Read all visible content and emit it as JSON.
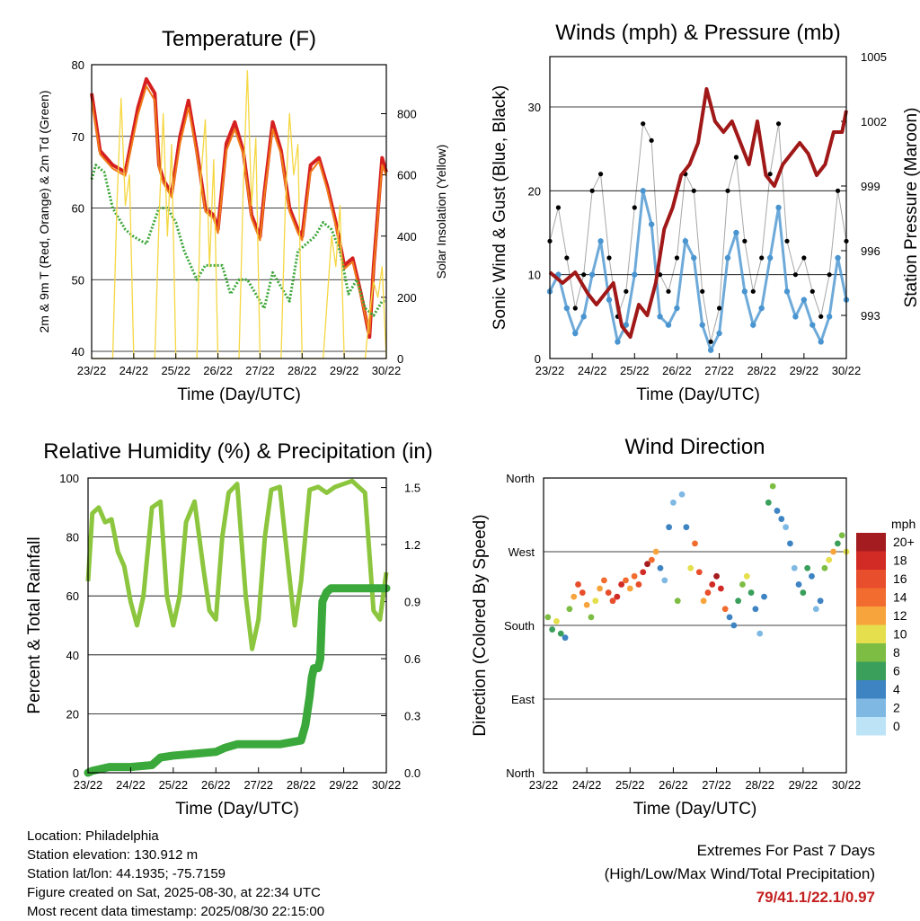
{
  "colors": {
    "temp2m": "#d62020",
    "temp9m": "#f07a18",
    "dewpoint": "#3da63a",
    "solar": "#f5d742",
    "wind": "#4a95d0",
    "gust": "#000000",
    "pressure": "#a01818",
    "rh": "#8cc63e",
    "precip": "#3aa83a",
    "extremes": "#c41e1e"
  },
  "time_ticks": [
    "23/22",
    "24/22",
    "25/22",
    "26/22",
    "27/22",
    "28/22",
    "29/22",
    "30/22"
  ],
  "chart_data": [
    {
      "type": "line",
      "title": "Temperature (F)",
      "xlabel": "Time (Day/UTC)",
      "ylabel": "2m & 9m T (Red, Orange) & 2m Td (Green)",
      "y2label": "Solar Insolation (Yellow)",
      "ylim": [
        39,
        80
      ],
      "y2lim": [
        0,
        960
      ],
      "yticks": [
        40,
        50,
        60,
        70,
        80
      ],
      "y2ticks": [
        0,
        200,
        400,
        600,
        800
      ],
      "series": [
        {
          "key": "temp2m",
          "x": [
            0,
            0.2,
            0.5,
            0.8,
            1.1,
            1.3,
            1.5,
            1.6,
            1.7,
            1.9,
            2.1,
            2.3,
            2.5,
            2.7,
            2.9,
            3.0,
            3.2,
            3.4,
            3.6,
            3.8,
            4.0,
            4.1,
            4.3,
            4.5,
            4.7,
            4.9,
            5.0,
            5.2,
            5.4,
            5.6,
            5.8,
            6.0,
            6.2,
            6.4,
            6.6,
            6.7,
            6.9,
            7.0
          ],
          "y": [
            76,
            68,
            66,
            65,
            74,
            78,
            76,
            66,
            64,
            62,
            70,
            75,
            68,
            60,
            59,
            57,
            69,
            72,
            68,
            59,
            56,
            62,
            72,
            68,
            60,
            57,
            56,
            66,
            67,
            63,
            58,
            52,
            53,
            48,
            42,
            52,
            67,
            65
          ]
        },
        {
          "key": "temp9m",
          "x": [
            0,
            0.2,
            0.5,
            0.8,
            1.1,
            1.3,
            1.5,
            1.6,
            1.7,
            1.9,
            2.1,
            2.3,
            2.5,
            2.7,
            2.9,
            3.0,
            3.2,
            3.4,
            3.6,
            3.8,
            4.0,
            4.1,
            4.3,
            4.5,
            4.7,
            4.9,
            5.0,
            5.2,
            5.4,
            5.6,
            5.8,
            6.0,
            6.2,
            6.4,
            6.6,
            6.7,
            6.9,
            7.0
          ],
          "y": [
            75,
            67.5,
            65.5,
            64.5,
            73,
            77,
            75,
            65.5,
            63.5,
            61.5,
            69,
            74,
            67.5,
            59.5,
            58.5,
            56.5,
            68,
            71,
            67.5,
            58.5,
            55.5,
            61.5,
            71,
            67.5,
            59.5,
            56.5,
            55.5,
            65,
            66.5,
            62.5,
            57.5,
            51.5,
            52.5,
            47.5,
            42.5,
            51.5,
            66,
            64.5
          ]
        },
        {
          "key": "dewpoint",
          "x": [
            0,
            0.1,
            0.3,
            0.5,
            0.8,
            1.0,
            1.3,
            1.6,
            1.8,
            2.0,
            2.2,
            2.5,
            2.7,
            2.9,
            3.1,
            3.3,
            3.5,
            3.7,
            3.9,
            4.1,
            4.3,
            4.5,
            4.7,
            4.9,
            5.1,
            5.3,
            5.5,
            5.7,
            5.9,
            6.1,
            6.3,
            6.5,
            6.7,
            6.9,
            7.0
          ],
          "y": [
            64,
            66,
            65,
            60,
            57,
            56,
            55,
            60,
            60,
            58,
            54,
            50,
            52,
            52,
            52,
            48,
            50,
            50,
            48,
            46,
            51,
            49,
            47,
            54,
            55,
            56,
            58,
            57,
            54,
            48,
            50,
            46,
            45,
            47,
            47
          ]
        },
        {
          "key": "solar",
          "x": [
            0,
            0.5,
            0.6,
            0.7,
            0.8,
            0.9,
            1.0,
            1.5,
            1.6,
            1.7,
            1.8,
            1.9,
            2.0,
            2.5,
            2.6,
            2.7,
            2.8,
            2.9,
            3.0,
            3.5,
            3.6,
            3.7,
            3.8,
            3.9,
            4.0,
            4.5,
            4.6,
            4.7,
            4.8,
            4.9,
            5.0,
            5.5,
            5.6,
            5.7,
            5.8,
            5.9,
            6.0,
            6.5,
            6.6,
            6.7,
            6.8,
            6.9,
            7.0
          ],
          "y": [
            0,
            0,
            500,
            850,
            500,
            600,
            0,
            0,
            450,
            800,
            400,
            700,
            0,
            0,
            600,
            780,
            300,
            650,
            0,
            0,
            550,
            940,
            500,
            720,
            0,
            0,
            500,
            800,
            600,
            700,
            0,
            0,
            200,
            400,
            300,
            500,
            0,
            0,
            150,
            250,
            200,
            300,
            0
          ]
        }
      ]
    },
    {
      "type": "scatter",
      "title": "Winds (mph) & Pressure (mb)",
      "xlabel": "Time (Day/UTC)",
      "ylabel": "Sonic Wind & Gust (Blue, Black)",
      "y2label": "Station Pressure (Maroon)",
      "ylim": [
        0,
        36
      ],
      "y2lim": [
        991,
        1005
      ],
      "yticks": [
        0,
        10,
        20,
        30
      ],
      "y2ticks": [
        993,
        996,
        999,
        1002,
        1005
      ],
      "series": [
        {
          "key": "gust",
          "x": [
            0,
            0.2,
            0.4,
            0.6,
            0.8,
            1.0,
            1.2,
            1.4,
            1.6,
            1.8,
            2.0,
            2.2,
            2.4,
            2.6,
            2.8,
            3.0,
            3.2,
            3.4,
            3.6,
            3.8,
            4.0,
            4.2,
            4.4,
            4.6,
            4.8,
            5.0,
            5.2,
            5.4,
            5.6,
            5.8,
            6.0,
            6.2,
            6.4,
            6.6,
            6.8,
            7.0
          ],
          "y": [
            14,
            18,
            12,
            6,
            10,
            20,
            22,
            12,
            5,
            8,
            18,
            28,
            26,
            10,
            8,
            12,
            22,
            20,
            8,
            2,
            6,
            20,
            24,
            14,
            8,
            12,
            22,
            28,
            14,
            10,
            12,
            8,
            5,
            10,
            20,
            14
          ]
        },
        {
          "key": "wind",
          "x": [
            0,
            0.2,
            0.4,
            0.6,
            0.8,
            1.0,
            1.2,
            1.4,
            1.6,
            1.8,
            2.0,
            2.2,
            2.4,
            2.6,
            2.8,
            3.0,
            3.2,
            3.4,
            3.6,
            3.8,
            4.0,
            4.2,
            4.4,
            4.6,
            4.8,
            5.0,
            5.2,
            5.4,
            5.6,
            5.8,
            6.0,
            6.2,
            6.4,
            6.6,
            6.8,
            7.0
          ],
          "y": [
            8,
            10,
            6,
            3,
            5,
            10,
            14,
            7,
            2,
            4,
            10,
            20,
            16,
            5,
            4,
            6,
            14,
            12,
            4,
            1,
            3,
            12,
            15,
            8,
            4,
            6,
            12,
            18,
            8,
            5,
            7,
            4,
            2,
            5,
            12,
            7
          ]
        },
        {
          "key": "pressure",
          "x": [
            0,
            0.3,
            0.6,
            0.9,
            1.1,
            1.3,
            1.5,
            1.7,
            1.9,
            2.1,
            2.3,
            2.5,
            2.7,
            2.9,
            3.1,
            3.3,
            3.5,
            3.7,
            3.9,
            4.1,
            4.3,
            4.5,
            4.7,
            4.9,
            5.1,
            5.3,
            5.5,
            5.7,
            5.9,
            6.1,
            6.3,
            6.5,
            6.7,
            6.9,
            7.0
          ],
          "y": [
            995,
            994.5,
            995,
            994,
            993.5,
            994,
            994.5,
            992.5,
            992,
            993.5,
            993,
            994.5,
            997,
            998,
            999.5,
            1000,
            1001,
            1003.5,
            1002,
            1001.5,
            1002,
            1001,
            1000,
            1002,
            999.5,
            999,
            1000,
            1000.5,
            1001,
            1000.5,
            999.5,
            1000,
            1001.5,
            1001.5,
            1002.5
          ]
        }
      ]
    },
    {
      "type": "line",
      "title": "Relative Humidity (%) & Precipitation (in)",
      "xlabel": "Time (Day/UTC)",
      "ylabel": "Percent & Total Rainfall",
      "ylim": [
        0,
        100
      ],
      "y2lim": [
        0,
        1.55
      ],
      "yticks": [
        0,
        20,
        40,
        60,
        80,
        100
      ],
      "y2ticks": [
        "0.0",
        "0.3",
        "0.6",
        "0.9",
        "1.2",
        "1.5"
      ],
      "series": [
        {
          "key": "rh",
          "x": [
            0,
            0.1,
            0.25,
            0.4,
            0.55,
            0.7,
            0.85,
            1.0,
            1.15,
            1.3,
            1.5,
            1.7,
            1.85,
            2.0,
            2.15,
            2.3,
            2.5,
            2.7,
            2.85,
            3.0,
            3.15,
            3.3,
            3.5,
            3.7,
            3.85,
            4.0,
            4.15,
            4.3,
            4.5,
            4.7,
            4.85,
            5.0,
            5.2,
            5.4,
            5.6,
            5.8,
            6.0,
            6.2,
            6.5,
            6.7,
            6.85,
            7.0
          ],
          "y": [
            65,
            88,
            90,
            85,
            86,
            75,
            70,
            58,
            50,
            60,
            90,
            92,
            60,
            50,
            60,
            85,
            92,
            70,
            55,
            52,
            80,
            95,
            98,
            60,
            42,
            52,
            80,
            96,
            97,
            70,
            50,
            65,
            96,
            97,
            95,
            97,
            98,
            99,
            95,
            55,
            52,
            68
          ]
        },
        {
          "key": "precip",
          "x": [
            0,
            0.1,
            0.3,
            0.5,
            1.0,
            1.5,
            1.7,
            2.0,
            2.5,
            3.0,
            3.2,
            3.5,
            4.0,
            4.5,
            5.0,
            5.1,
            5.2,
            5.25,
            5.3,
            5.4,
            5.45,
            5.5,
            5.6,
            5.7,
            6.0,
            6.5,
            7.0
          ],
          "y": [
            0,
            0.01,
            0.02,
            0.03,
            0.03,
            0.04,
            0.08,
            0.09,
            0.1,
            0.11,
            0.13,
            0.15,
            0.15,
            0.15,
            0.17,
            0.25,
            0.4,
            0.5,
            0.55,
            0.55,
            0.6,
            0.9,
            0.95,
            0.97,
            0.97,
            0.97,
            0.97
          ]
        }
      ]
    },
    {
      "type": "scatter",
      "title": "Wind Direction",
      "xlabel": "Time (Day/UTC)",
      "ylabel": "Direction (Colored By Speed)",
      "ylim": [
        0,
        360
      ],
      "yticks": [
        "North",
        "East",
        "South",
        "West",
        "North"
      ],
      "legend": {
        "title": "mph",
        "labels": [
          "20+",
          "18",
          "16",
          "14",
          "12",
          "10",
          "8",
          "6",
          "4",
          "2",
          "0"
        ],
        "colors": [
          "#a51c20",
          "#d22a24",
          "#e84e2b",
          "#f26b2f",
          "#f8a43c",
          "#e5de4d",
          "#7dbd44",
          "#3a9f5b",
          "#3f84c2",
          "#7fb9e3",
          "#bde3f6"
        ]
      },
      "points_x": [
        0.1,
        0.2,
        0.3,
        0.4,
        0.5,
        0.6,
        0.7,
        0.8,
        0.9,
        1.0,
        1.1,
        1.2,
        1.3,
        1.4,
        1.5,
        1.6,
        1.7,
        1.8,
        1.9,
        2.0,
        2.1,
        2.2,
        2.3,
        2.4,
        2.5,
        2.6,
        2.7,
        2.8,
        2.9,
        3.0,
        3.1,
        3.2,
        3.3,
        3.4,
        3.5,
        3.6,
        3.7,
        3.8,
        3.9,
        4.0,
        4.1,
        4.2,
        4.3,
        4.4,
        4.5,
        4.6,
        4.7,
        4.8,
        4.9,
        5.0,
        5.1,
        5.2,
        5.3,
        5.4,
        5.5,
        5.6,
        5.7,
        5.8,
        5.9,
        6.0,
        6.1,
        6.2,
        6.3,
        6.4,
        6.5,
        6.6,
        6.7,
        6.8,
        6.9,
        7.0
      ],
      "points_dir": [
        190,
        175,
        185,
        170,
        165,
        200,
        215,
        230,
        220,
        205,
        190,
        210,
        225,
        235,
        220,
        210,
        215,
        230,
        235,
        225,
        240,
        230,
        245,
        255,
        260,
        270,
        250,
        235,
        300,
        330,
        210,
        340,
        300,
        250,
        280,
        245,
        210,
        220,
        230,
        240,
        225,
        200,
        190,
        180,
        210,
        230,
        240,
        220,
        200,
        170,
        215,
        330,
        350,
        320,
        310,
        300,
        280,
        250,
        230,
        220,
        250,
        240,
        200,
        210,
        250,
        260,
        270,
        280,
        290,
        270
      ],
      "points_speed": [
        8,
        6,
        10,
        5,
        4,
        8,
        12,
        15,
        16,
        12,
        8,
        10,
        12,
        14,
        15,
        16,
        17,
        18,
        14,
        12,
        14,
        16,
        18,
        20,
        14,
        12,
        4,
        2,
        3,
        1,
        8,
        2,
        3,
        10,
        14,
        16,
        12,
        16,
        18,
        20,
        17,
        14,
        4,
        3,
        6,
        8,
        10,
        5,
        3,
        2,
        4,
        6,
        8,
        4,
        3,
        2,
        3,
        2,
        4,
        6,
        5,
        3,
        2,
        4,
        8,
        10,
        12,
        6,
        8,
        10
      ]
    }
  ],
  "info": {
    "location": "Location: Philadelphia",
    "elevation": "Station elevation: 130.912 m",
    "latlon": "Station lat/lon: 44.1935; -75.7159",
    "created": "Figure created on Sat, 2025-08-30, at 22:34 UTC",
    "recent": "Most recent data timestamp: 2025/08/30 22:15:00"
  },
  "extremes": {
    "line1": "Extremes For Past 7 Days",
    "line2": "(High/Low/Max Wind/Total Precipitation)",
    "values": "79/41.1/22.1/0.97"
  }
}
